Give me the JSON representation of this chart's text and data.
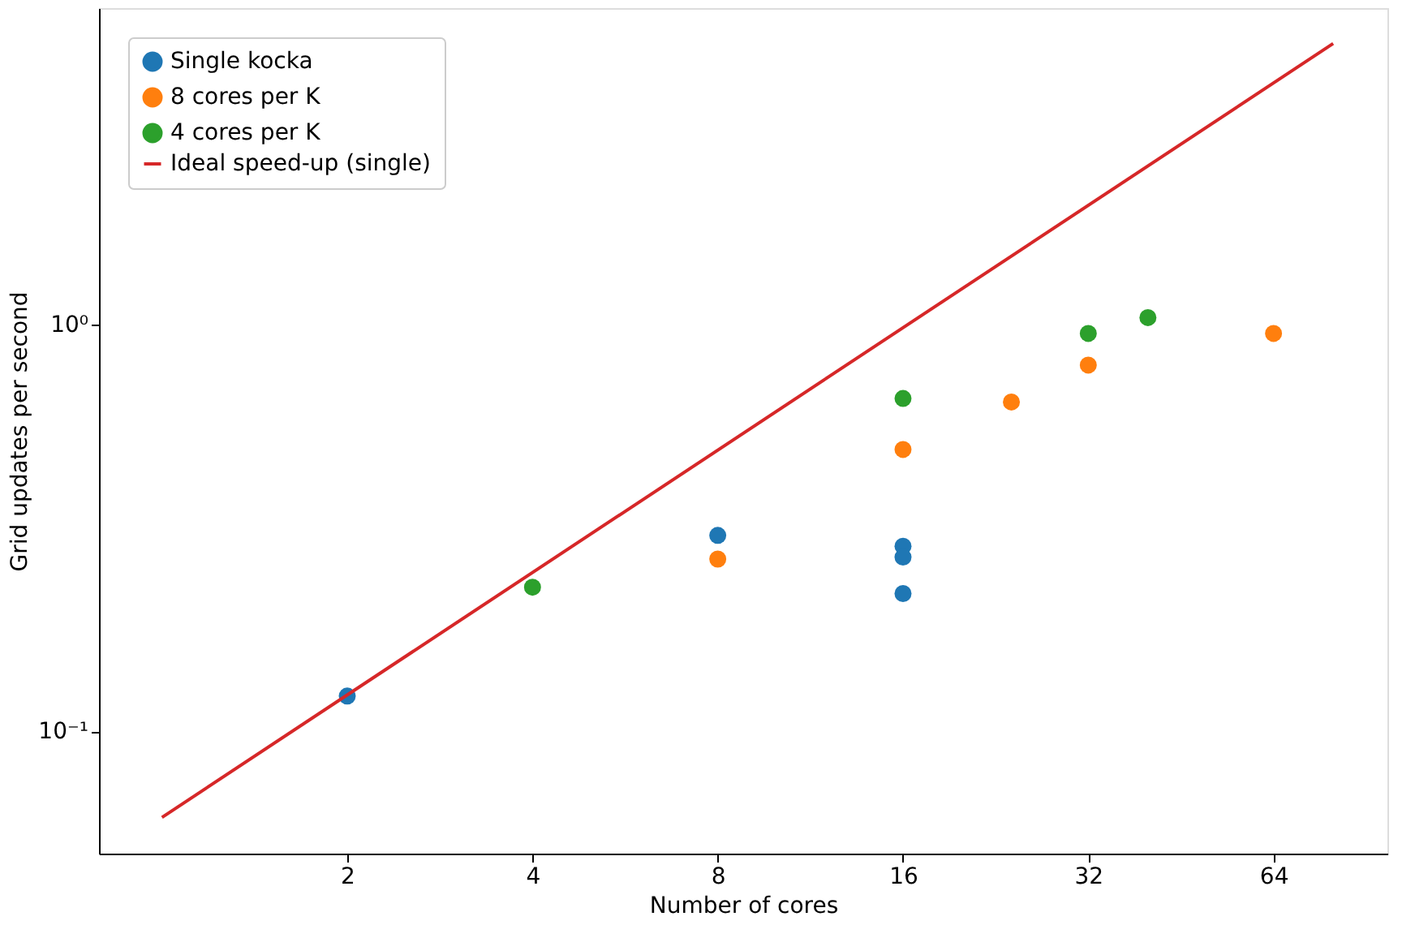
{
  "chart_data": {
    "type": "scatter",
    "xlabel": "Number of cores",
    "ylabel": "Grid updates per second",
    "log": "xy",
    "grid": false,
    "legend": "top left",
    "marker": "circle",
    "xlim": [
      0.79,
      98
    ],
    "ylim": [
      0.05,
      6.0
    ],
    "xticks": [
      2,
      4,
      8,
      16,
      32,
      64
    ],
    "yticks": [
      {
        "value": 0.1,
        "label": "10⁻¹"
      },
      {
        "value": 1,
        "label": "10⁰"
      }
    ],
    "series": [
      {
        "name": "Single kocka",
        "color": "#1f77b4",
        "x": [
          2,
          8,
          16,
          16,
          16
        ],
        "values": [
          0.122,
          0.303,
          0.285,
          0.268,
          0.218
        ]
      },
      {
        "name": "8 cores per K",
        "color": "#ff7f0e",
        "x": [
          8,
          16,
          24,
          32,
          64
        ],
        "values": [
          0.265,
          0.493,
          0.645,
          0.795,
          0.951
        ]
      },
      {
        "name": "4 cores per K",
        "color": "#2ca02c",
        "x": [
          4,
          16,
          32,
          40
        ],
        "values": [
          0.226,
          0.658,
          0.951,
          1.04
        ]
      },
      {
        "name": "Ideal speed-up (single)",
        "color": "#d62728",
        "type": "line",
        "marker": "none",
        "x": [
          1,
          80
        ],
        "values": [
          0.0614,
          4.91
        ]
      }
    ]
  }
}
